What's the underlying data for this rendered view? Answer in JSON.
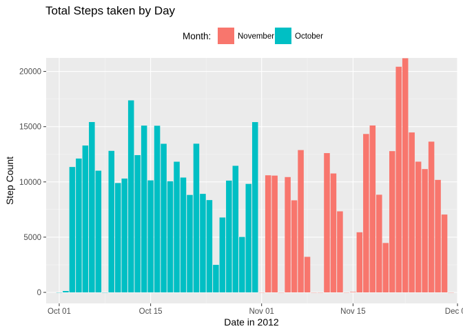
{
  "chart_data": {
    "type": "bar",
    "title": "Total Steps taken by Day",
    "xlabel": "Date in 2012",
    "ylabel": "Step Count",
    "ylim": [
      0,
      22000
    ],
    "xlim": [
      "2012-09-29",
      "2012-12-01"
    ],
    "grid": true,
    "legend": {
      "title": "Month:",
      "position": "top",
      "entries": [
        {
          "label": "November",
          "color": "#F8766D"
        },
        {
          "label": "October",
          "color": "#00BFC4"
        }
      ]
    },
    "x_ticks": [
      {
        "date": "2012-10-01",
        "label": "Oct 01"
      },
      {
        "date": "2012-10-15",
        "label": "Oct 15"
      },
      {
        "date": "2012-11-01",
        "label": "Nov 01"
      },
      {
        "date": "2012-11-15",
        "label": "Nov 15"
      },
      {
        "date": "2012-12-01",
        "label": "Dec 01"
      }
    ],
    "y_ticks": [
      {
        "value": 0,
        "label": "0"
      },
      {
        "value": 5000,
        "label": "5000"
      },
      {
        "value": 10000,
        "label": "10000"
      },
      {
        "value": 15000,
        "label": "15000"
      },
      {
        "value": 20000,
        "label": "20000"
      }
    ],
    "series": [
      {
        "name": "October",
        "color": "#00BFC4",
        "x": [
          "2012-10-01",
          "2012-10-02",
          "2012-10-03",
          "2012-10-04",
          "2012-10-05",
          "2012-10-06",
          "2012-10-07",
          "2012-10-08",
          "2012-10-09",
          "2012-10-10",
          "2012-10-11",
          "2012-10-12",
          "2012-10-13",
          "2012-10-14",
          "2012-10-15",
          "2012-10-16",
          "2012-10-17",
          "2012-10-18",
          "2012-10-19",
          "2012-10-20",
          "2012-10-21",
          "2012-10-22",
          "2012-10-23",
          "2012-10-24",
          "2012-10-25",
          "2012-10-26",
          "2012-10-27",
          "2012-10-28",
          "2012-10-29",
          "2012-10-30",
          "2012-10-31"
        ],
        "values": [
          0,
          126,
          11352,
          12116,
          13294,
          15420,
          11015,
          0,
          12811,
          9900,
          10304,
          17382,
          12426,
          15098,
          10139,
          15084,
          13452,
          10056,
          11829,
          10395,
          8821,
          13460,
          8918,
          8355,
          2492,
          6778,
          10119,
          11458,
          5018,
          9819,
          15414
        ]
      },
      {
        "name": "November",
        "color": "#F8766D",
        "x": [
          "2012-11-01",
          "2012-11-02",
          "2012-11-03",
          "2012-11-04",
          "2012-11-05",
          "2012-11-06",
          "2012-11-07",
          "2012-11-08",
          "2012-11-09",
          "2012-11-10",
          "2012-11-11",
          "2012-11-12",
          "2012-11-13",
          "2012-11-14",
          "2012-11-15",
          "2012-11-16",
          "2012-11-17",
          "2012-11-18",
          "2012-11-19",
          "2012-11-20",
          "2012-11-21",
          "2012-11-22",
          "2012-11-23",
          "2012-11-24",
          "2012-11-25",
          "2012-11-26",
          "2012-11-27",
          "2012-11-28",
          "2012-11-29",
          "2012-11-30"
        ],
        "values": [
          0,
          10600,
          10571,
          0,
          10439,
          8334,
          12883,
          3219,
          0,
          0,
          12608,
          10765,
          7336,
          0,
          41,
          5441,
          14339,
          15110,
          8841,
          4472,
          12787,
          20427,
          21194,
          14478,
          11834,
          11162,
          13646,
          10183,
          7047,
          0
        ]
      }
    ]
  }
}
